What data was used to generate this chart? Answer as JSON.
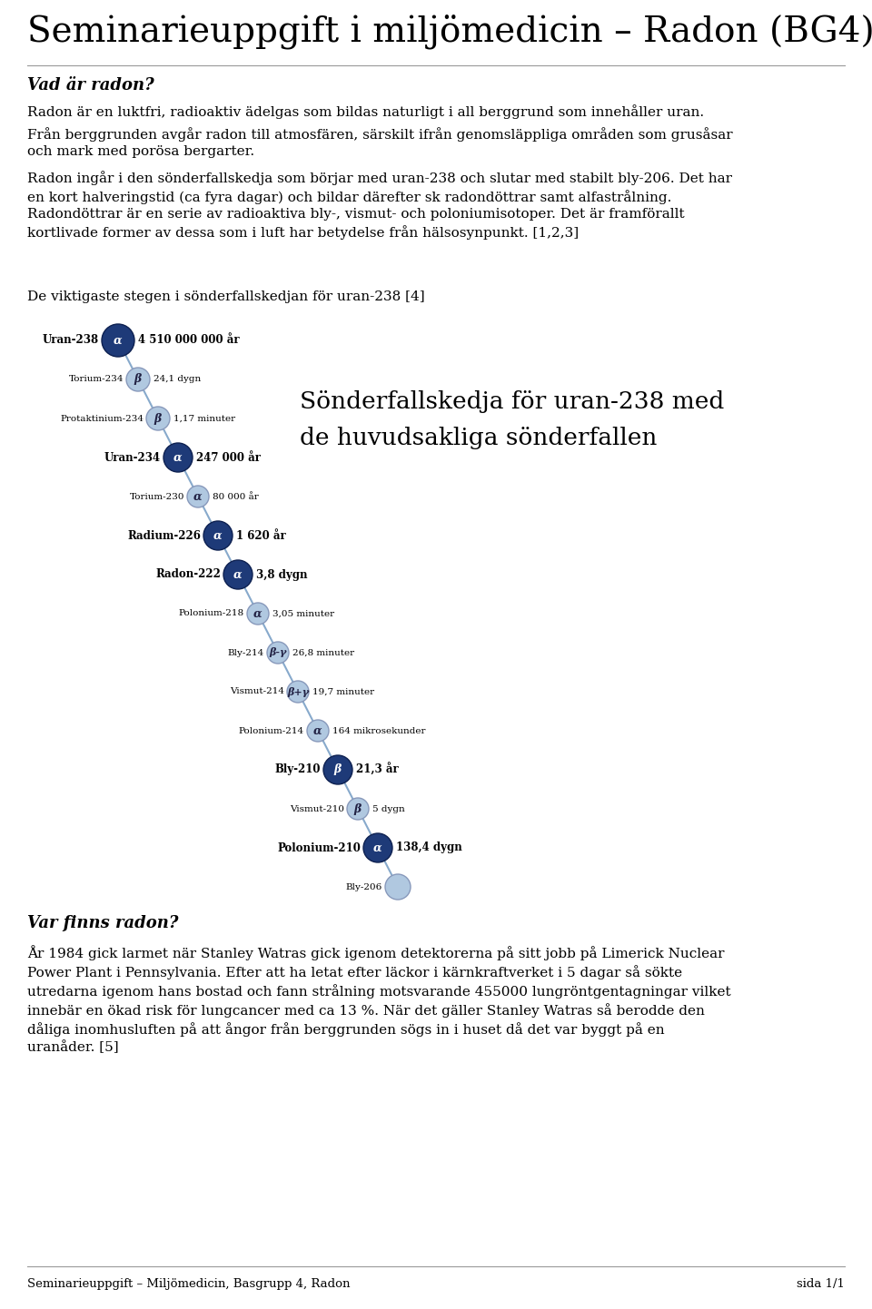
{
  "title": "Seminarieuppgift i miljömedicin – Radon (BG4)",
  "section1_header": "Vad är radon?",
  "section1_p1": "Radon är en luktfri, radioaktiv ädelgas som bildas naturligt i all berggrund som innehåller uran.",
  "section1_p2": "Från berggrunden avgår radon till atmosfären, särskilt ifrån genomsläppliga områden som grusåsar\noch mark med porösa bergarter.",
  "section1_p3": "Radon ingår i den sönderfallskedja som börjar med uran-238 och slutar med stabilt bly-206. Det har\nen kort halveringstid (ca fyra dagar) och bildar därefter sk radondöttrar samt alfastrålning.\nRadondöttrar är en serie av radioaktiva bly-, vismut- och poloniumisotoper. Det är framförallt\nkortlivade former av dessa som i luft har betydelse från hälsosynpunkt. [1,2,3]",
  "chain_header": "De viktigaste stegen i sönderfallskedjan för uran-238 [4]",
  "chain_title_line1": "Sönderfallskedja för uran-238 med",
  "chain_title_line2": "de huvudsakliga sönderfallen",
  "elements": [
    {
      "name": "Uran-238",
      "symbol": "α",
      "halflife": "4 510 000 000 år",
      "bold": true,
      "dark": true,
      "r": 18
    },
    {
      "name": "Torium-234",
      "symbol": "β",
      "halflife": "24,1 dygn",
      "bold": false,
      "dark": false,
      "r": 13
    },
    {
      "name": "Protaktinium-234",
      "symbol": "β",
      "halflife": "1,17 minuter",
      "bold": false,
      "dark": false,
      "r": 13
    },
    {
      "name": "Uran-234",
      "symbol": "α",
      "halflife": "247 000 år",
      "bold": true,
      "dark": true,
      "r": 16
    },
    {
      "name": "Torium-230",
      "symbol": "α",
      "halflife": "80 000 år",
      "bold": false,
      "dark": false,
      "r": 12
    },
    {
      "name": "Radium-226",
      "symbol": "α",
      "halflife": "1 620 år",
      "bold": true,
      "dark": true,
      "r": 16
    },
    {
      "name": "Radon-222",
      "symbol": "α",
      "halflife": "3,8 dygn",
      "bold": true,
      "dark": true,
      "r": 16
    },
    {
      "name": "Polonium-218",
      "symbol": "α",
      "halflife": "3,05 minuter",
      "bold": false,
      "dark": false,
      "r": 12
    },
    {
      "name": "Bly-214",
      "symbol": "β-γ",
      "halflife": "26,8 minuter",
      "bold": false,
      "dark": false,
      "r": 12
    },
    {
      "name": "Vismut-214",
      "symbol": "β+γ",
      "halflife": "19,7 minuter",
      "bold": false,
      "dark": false,
      "r": 12
    },
    {
      "name": "Polonium-214",
      "symbol": "α",
      "halflife": "164 mikrosekunder",
      "bold": false,
      "dark": false,
      "r": 12
    },
    {
      "name": "Bly-210",
      "symbol": "β",
      "halflife": "21,3 år",
      "bold": true,
      "dark": true,
      "r": 16
    },
    {
      "name": "Vismut-210",
      "symbol": "β",
      "halflife": "5 dygn",
      "bold": false,
      "dark": false,
      "r": 12
    },
    {
      "name": "Polonium-210",
      "symbol": "α",
      "halflife": "138,4 dygn",
      "bold": true,
      "dark": true,
      "r": 16
    },
    {
      "name": "Bly-206",
      "symbol": "",
      "halflife": "",
      "bold": false,
      "dark": false,
      "r": 14
    }
  ],
  "section2_header": "Var finns radon?",
  "section2_p1": "År 1984 gick larmet när Stanley Watras gick igenom detektorerna på sitt jobb på Limerick Nuclear\nPower Plant i Pennsylvania. Efter att ha letat efter läckor i kärnkraftverket i 5 dagar så sökte\nutredarna igenom hans bostad och fann strålning motsvarande 455000 lungröntgentagningar vilket\ninnebär en ökad risk för lungcancer med ca 13 %. När det gäller Stanley Watras så berodde den\ndåliga inomhusluften på att ångor från berggrunden sögs in i huset då det var byggt på en\nuranåder. [5]",
  "footer_left": "Seminarieuppgift – Miljömedicin, Basgrupp 4, Radon",
  "footer_right": "sida 1/1",
  "bg_color": "#ffffff",
  "text_color": "#000000",
  "dark_blue": "#1e3a78",
  "light_blue": "#b0c8e0",
  "line_color": "#88aacc"
}
